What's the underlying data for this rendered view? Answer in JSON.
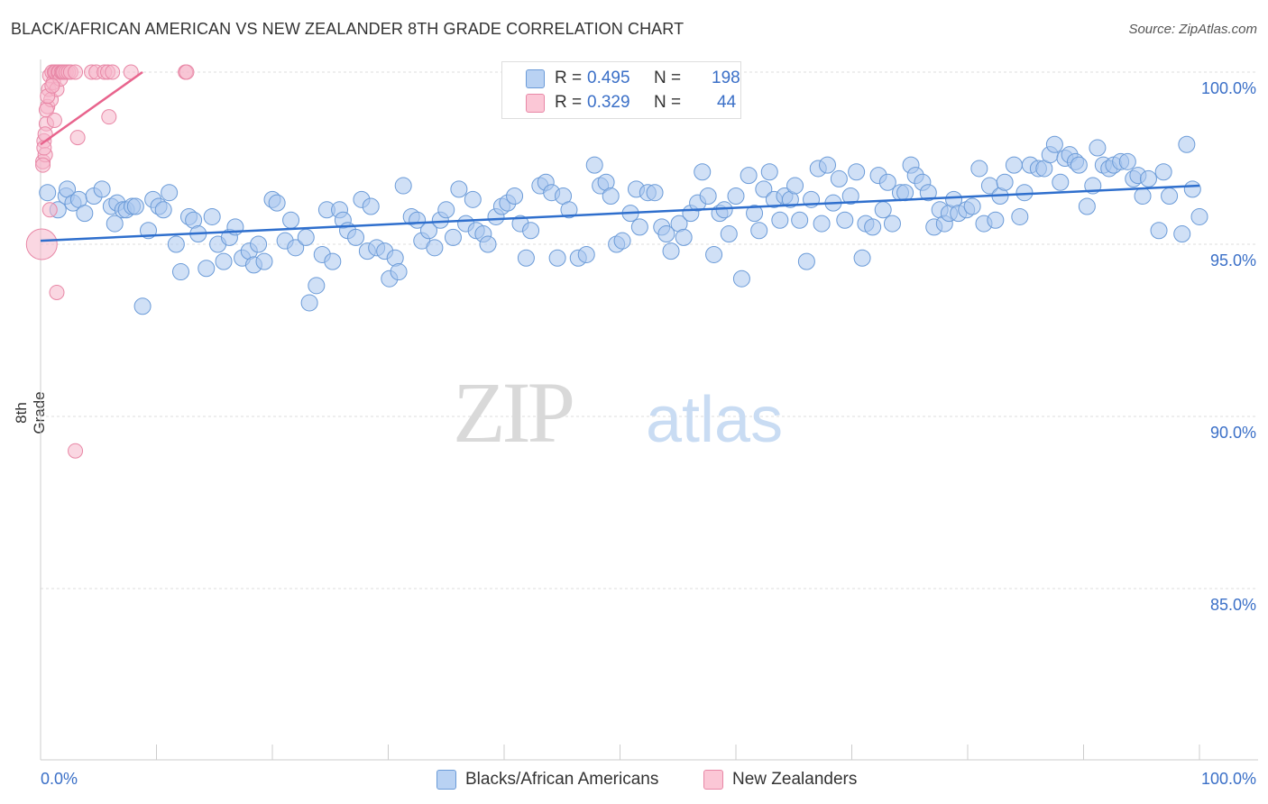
{
  "title": "BLACK/AFRICAN AMERICAN VS NEW ZEALANDER 8TH GRADE CORRELATION CHART",
  "source": "Source: ZipAtlas.com",
  "watermark": {
    "zip": "ZIP",
    "atlas": "atlas"
  },
  "legend": {
    "r_label": "R =",
    "n_label": "N =",
    "rows": [
      {
        "r": "0.495",
        "n": "198"
      },
      {
        "r": "0.329",
        "n": "44"
      }
    ]
  },
  "colors": {
    "blue_fill": "#a9c6ee",
    "blue_stroke": "#6b9bd8",
    "blue_line": "#2f6fcd",
    "pink_fill": "#f6b7ca",
    "pink_stroke": "#e887a6",
    "pink_line": "#e8648d",
    "tick_label": "#3a6fc7",
    "grid": "#dddddd"
  },
  "chart_data": {
    "type": "scatter",
    "title": "BLACK/AFRICAN AMERICAN VS NEW ZEALANDER 8TH GRADE CORRELATION CHART",
    "xlabel": "",
    "ylabel": "8th Grade",
    "x_tick_labels": [
      "0.0%",
      "100.0%"
    ],
    "y_tick_labels": [
      "100.0%",
      "95.0%",
      "90.0%",
      "85.0%"
    ],
    "y_ticks": [
      100,
      95,
      90,
      85
    ],
    "xlim": [
      0,
      100
    ],
    "ylim": [
      80.5,
      101
    ],
    "grid": true,
    "legend_position": "top-center",
    "series": [
      {
        "name": "Blacks/African Americans",
        "color": "#a9c6ee",
        "r": 0.495,
        "n": 198,
        "trend": {
          "x0": 0,
          "y0": 95.1,
          "x1": 100,
          "y1": 96.7
        },
        "points": [
          [
            0.6,
            96.5
          ],
          [
            1.5,
            96.0
          ],
          [
            2.2,
            96.4
          ],
          [
            2.3,
            96.6
          ],
          [
            2.8,
            96.2
          ],
          [
            3.3,
            96.3
          ],
          [
            3.8,
            95.9
          ],
          [
            4.6,
            96.4
          ],
          [
            5.3,
            96.6
          ],
          [
            6.1,
            96.1
          ],
          [
            6.4,
            95.6
          ],
          [
            6.6,
            96.2
          ],
          [
            7.1,
            96.0
          ],
          [
            7.4,
            96.0
          ],
          [
            7.9,
            96.1
          ],
          [
            8.2,
            96.1
          ],
          [
            8.8,
            93.2
          ],
          [
            9.3,
            95.4
          ],
          [
            9.7,
            96.3
          ],
          [
            10.2,
            96.1
          ],
          [
            10.6,
            96.0
          ],
          [
            11.1,
            96.5
          ],
          [
            11.7,
            95.0
          ],
          [
            12.1,
            94.2
          ],
          [
            12.8,
            95.8
          ],
          [
            13.2,
            95.7
          ],
          [
            13.6,
            95.3
          ],
          [
            14.3,
            94.3
          ],
          [
            14.8,
            95.8
          ],
          [
            15.3,
            95.0
          ],
          [
            15.8,
            94.5
          ],
          [
            16.3,
            95.2
          ],
          [
            16.8,
            95.5
          ],
          [
            17.4,
            94.6
          ],
          [
            18.0,
            94.8
          ],
          [
            18.4,
            94.4
          ],
          [
            18.8,
            95.0
          ],
          [
            19.3,
            94.5
          ],
          [
            20.0,
            96.3
          ],
          [
            20.4,
            96.2
          ],
          [
            21.1,
            95.1
          ],
          [
            21.6,
            95.7
          ],
          [
            22.0,
            94.9
          ],
          [
            22.9,
            95.2
          ],
          [
            23.2,
            93.3
          ],
          [
            23.8,
            93.8
          ],
          [
            24.3,
            94.7
          ],
          [
            24.7,
            96.0
          ],
          [
            25.2,
            94.5
          ],
          [
            25.8,
            96.0
          ],
          [
            26.1,
            95.7
          ],
          [
            26.5,
            95.4
          ],
          [
            27.2,
            95.2
          ],
          [
            27.7,
            96.3
          ],
          [
            28.2,
            94.8
          ],
          [
            28.5,
            96.1
          ],
          [
            29.0,
            94.9
          ],
          [
            29.7,
            94.8
          ],
          [
            30.1,
            94.0
          ],
          [
            30.6,
            94.6
          ],
          [
            30.9,
            94.2
          ],
          [
            31.3,
            96.7
          ],
          [
            32.0,
            95.8
          ],
          [
            32.5,
            95.7
          ],
          [
            32.9,
            95.1
          ],
          [
            33.5,
            95.4
          ],
          [
            34.0,
            94.9
          ],
          [
            34.5,
            95.7
          ],
          [
            35.0,
            96.0
          ],
          [
            35.6,
            95.2
          ],
          [
            36.1,
            96.6
          ],
          [
            36.7,
            95.6
          ],
          [
            37.3,
            96.3
          ],
          [
            37.6,
            95.4
          ],
          [
            38.2,
            95.3
          ],
          [
            38.6,
            95.0
          ],
          [
            39.3,
            95.8
          ],
          [
            39.8,
            96.1
          ],
          [
            40.3,
            96.2
          ],
          [
            40.9,
            96.4
          ],
          [
            41.4,
            95.6
          ],
          [
            41.9,
            94.6
          ],
          [
            42.3,
            95.4
          ],
          [
            43.1,
            96.7
          ],
          [
            43.6,
            96.8
          ],
          [
            44.1,
            96.5
          ],
          [
            44.6,
            94.6
          ],
          [
            45.1,
            96.4
          ],
          [
            45.6,
            96.0
          ],
          [
            46.4,
            94.6
          ],
          [
            47.1,
            94.7
          ],
          [
            47.8,
            97.3
          ],
          [
            48.3,
            96.7
          ],
          [
            48.8,
            96.8
          ],
          [
            49.2,
            96.4
          ],
          [
            49.7,
            95.0
          ],
          [
            50.2,
            95.1
          ],
          [
            50.9,
            95.9
          ],
          [
            51.4,
            96.6
          ],
          [
            51.7,
            95.5
          ],
          [
            52.4,
            96.5
          ],
          [
            53.0,
            96.5
          ],
          [
            53.6,
            95.5
          ],
          [
            54.0,
            95.3
          ],
          [
            54.4,
            94.8
          ],
          [
            55.1,
            95.6
          ],
          [
            55.5,
            95.2
          ],
          [
            56.1,
            95.9
          ],
          [
            56.7,
            96.2
          ],
          [
            57.1,
            97.1
          ],
          [
            57.6,
            96.4
          ],
          [
            58.1,
            94.7
          ],
          [
            58.6,
            95.9
          ],
          [
            59.0,
            96.0
          ],
          [
            59.4,
            95.3
          ],
          [
            60.0,
            96.4
          ],
          [
            60.5,
            94.0
          ],
          [
            61.1,
            97.0
          ],
          [
            61.6,
            95.9
          ],
          [
            62.0,
            95.4
          ],
          [
            62.4,
            96.6
          ],
          [
            62.9,
            97.1
          ],
          [
            63.3,
            96.3
          ],
          [
            63.8,
            95.7
          ],
          [
            64.2,
            96.4
          ],
          [
            64.7,
            96.3
          ],
          [
            65.1,
            96.7
          ],
          [
            65.5,
            95.7
          ],
          [
            66.1,
            94.5
          ],
          [
            66.5,
            96.3
          ],
          [
            67.1,
            97.2
          ],
          [
            67.4,
            95.6
          ],
          [
            67.9,
            97.3
          ],
          [
            68.4,
            96.2
          ],
          [
            68.9,
            96.9
          ],
          [
            69.4,
            95.7
          ],
          [
            69.9,
            96.4
          ],
          [
            70.4,
            97.1
          ],
          [
            70.9,
            94.6
          ],
          [
            71.2,
            95.6
          ],
          [
            71.8,
            95.5
          ],
          [
            72.3,
            97.0
          ],
          [
            72.7,
            96.0
          ],
          [
            73.1,
            96.8
          ],
          [
            73.5,
            95.6
          ],
          [
            74.2,
            96.5
          ],
          [
            74.6,
            96.5
          ],
          [
            75.1,
            97.3
          ],
          [
            75.5,
            97.0
          ],
          [
            76.1,
            96.8
          ],
          [
            76.6,
            96.5
          ],
          [
            77.1,
            95.5
          ],
          [
            77.6,
            96.0
          ],
          [
            78.0,
            95.6
          ],
          [
            78.4,
            95.9
          ],
          [
            78.8,
            96.3
          ],
          [
            79.2,
            95.9
          ],
          [
            79.9,
            96.0
          ],
          [
            80.4,
            96.1
          ],
          [
            81.0,
            97.2
          ],
          [
            81.4,
            95.6
          ],
          [
            81.9,
            96.7
          ],
          [
            82.4,
            95.7
          ],
          [
            82.8,
            96.4
          ],
          [
            83.2,
            96.8
          ],
          [
            84.0,
            97.3
          ],
          [
            84.5,
            95.8
          ],
          [
            84.9,
            96.5
          ],
          [
            85.4,
            97.3
          ],
          [
            86.1,
            97.2
          ],
          [
            86.6,
            97.2
          ],
          [
            87.1,
            97.6
          ],
          [
            87.5,
            97.9
          ],
          [
            88.0,
            96.8
          ],
          [
            88.4,
            97.5
          ],
          [
            88.8,
            97.6
          ],
          [
            89.3,
            97.4
          ],
          [
            89.6,
            97.3
          ],
          [
            90.3,
            96.1
          ],
          [
            90.8,
            96.7
          ],
          [
            91.2,
            97.8
          ],
          [
            91.7,
            97.3
          ],
          [
            92.2,
            97.2
          ],
          [
            92.6,
            97.3
          ],
          [
            93.2,
            97.4
          ],
          [
            93.8,
            97.4
          ],
          [
            94.3,
            96.9
          ],
          [
            94.7,
            97.0
          ],
          [
            95.1,
            96.4
          ],
          [
            95.6,
            96.9
          ],
          [
            96.5,
            95.4
          ],
          [
            96.9,
            97.1
          ],
          [
            97.4,
            96.4
          ],
          [
            98.5,
            95.3
          ],
          [
            98.9,
            97.9
          ],
          [
            99.4,
            96.6
          ],
          [
            100.0,
            95.8
          ]
        ]
      },
      {
        "name": "New Zealanders",
        "color": "#f6b7ca",
        "r": 0.329,
        "n": 44,
        "trend": {
          "x0": 0,
          "y0": 97.9,
          "x1": 8.8,
          "y1": 100
        },
        "points": [
          [
            0.1,
            95.0
          ],
          [
            0.2,
            97.4
          ],
          [
            0.3,
            98.0
          ],
          [
            0.4,
            97.6
          ],
          [
            0.5,
            98.5
          ],
          [
            0.6,
            99.0
          ],
          [
            0.7,
            99.5
          ],
          [
            0.8,
            99.9
          ],
          [
            0.9,
            99.2
          ],
          [
            1.0,
            100.0
          ],
          [
            1.1,
            99.7
          ],
          [
            1.2,
            100.0
          ],
          [
            1.3,
            100.0
          ],
          [
            1.4,
            99.5
          ],
          [
            1.5,
            100.0
          ],
          [
            1.6,
            100.0
          ],
          [
            1.7,
            99.8
          ],
          [
            1.8,
            100.0
          ],
          [
            1.9,
            100.0
          ],
          [
            2.0,
            100.0
          ],
          [
            2.2,
            100.0
          ],
          [
            2.4,
            100.0
          ],
          [
            2.6,
            100.0
          ],
          [
            3.0,
            100.0
          ],
          [
            0.2,
            97.3
          ],
          [
            0.3,
            97.8
          ],
          [
            0.4,
            98.2
          ],
          [
            0.5,
            98.9
          ],
          [
            0.6,
            99.3
          ],
          [
            1.0,
            99.6
          ],
          [
            1.2,
            98.6
          ],
          [
            3.2,
            98.1
          ],
          [
            4.4,
            100.0
          ],
          [
            4.8,
            100.0
          ],
          [
            5.5,
            100.0
          ],
          [
            5.8,
            100.0
          ],
          [
            6.2,
            100.0
          ],
          [
            7.8,
            100.0
          ],
          [
            12.5,
            100.0
          ],
          [
            12.6,
            100.0
          ],
          [
            5.9,
            98.7
          ],
          [
            1.4,
            93.6
          ],
          [
            3.0,
            89.0
          ],
          [
            0.8,
            96.0
          ]
        ]
      }
    ]
  },
  "bottom_legend": {
    "items": [
      "Blacks/African Americans",
      "New Zealanders"
    ]
  }
}
